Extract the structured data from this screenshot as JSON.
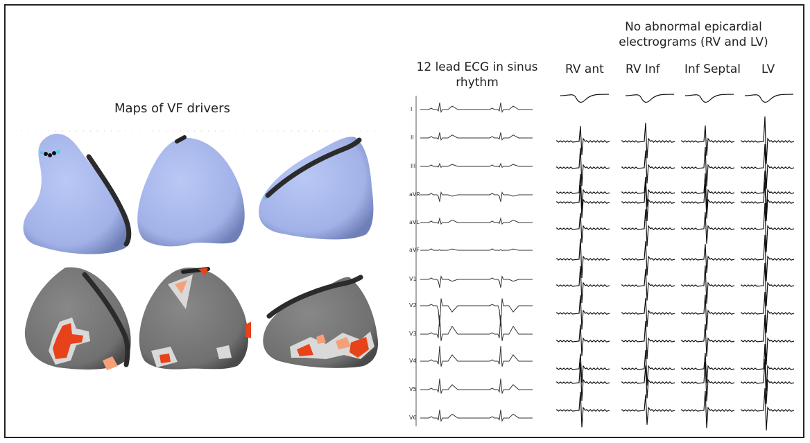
{
  "maps": {
    "title": "Maps of VF drivers"
  },
  "ecg": {
    "title": "12 lead ECG in sinus rhythm",
    "leads": [
      "I",
      "II",
      "III",
      "aVR",
      "aVL",
      "aVF",
      "V1",
      "V2",
      "V3",
      "V4",
      "V5",
      "V6"
    ]
  },
  "epicardial": {
    "title": "No abnormal epicardial electrograms (RV and LV)",
    "columns": [
      "RV ant",
      "RV Inf",
      "Inf Septal",
      "LV"
    ]
  },
  "colors": {
    "normal_map": "#a9b9ec",
    "normal_map_shade": "#7f90c8",
    "driver_bg": "#7a7a7a",
    "driver_hot": "#e8421b",
    "driver_warm": "#f5a07a",
    "driver_light": "#d9d9d9",
    "trace": "#111111"
  }
}
